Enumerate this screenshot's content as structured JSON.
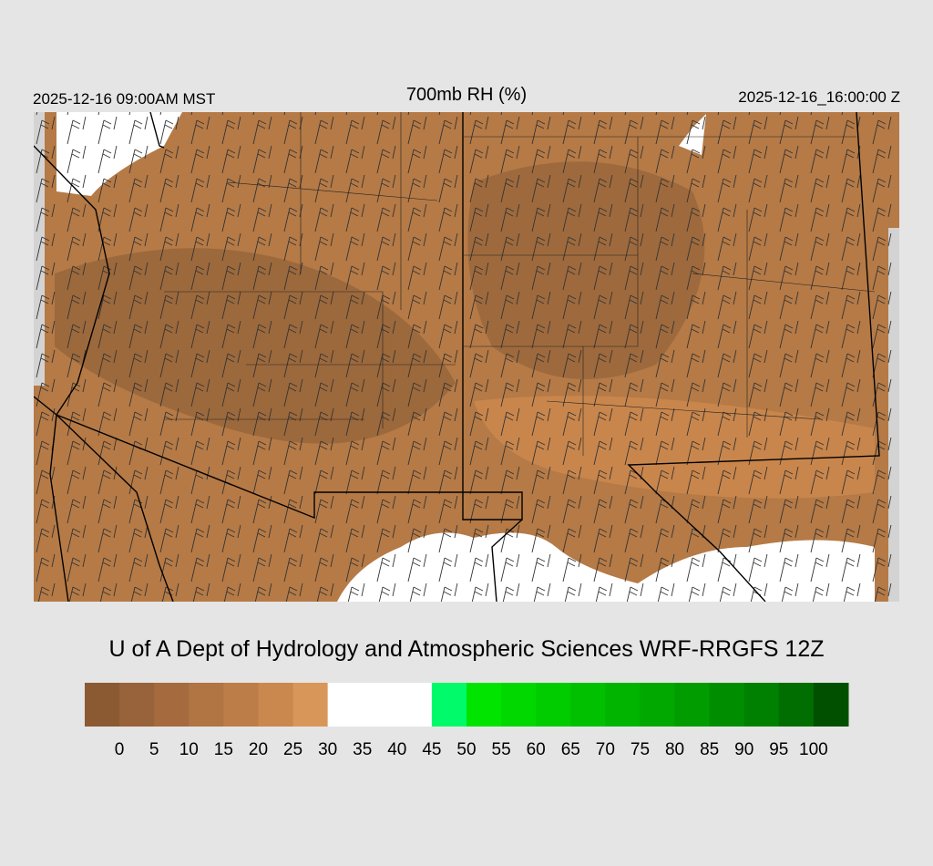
{
  "header": {
    "valid_local": "2025-12-16 09:00AM MST",
    "title": "700mb RH (%)",
    "valid_utc": "2025-12-16_16:00:00 Z"
  },
  "credit": "U of A Dept of Hydrology and Atmospheric Sciences WRF-RRGFS 12Z",
  "colorbar": {
    "colors": [
      "#8b5a33",
      "#98623a",
      "#a56b3e",
      "#b17443",
      "#bd7d48",
      "#ca874e",
      "#d89759",
      "#ffffff",
      "#ffffff",
      "#ffffff",
      "#00fa6a",
      "#00e400",
      "#00d800",
      "#00cc00",
      "#00c000",
      "#00b400",
      "#00a800",
      "#009c00",
      "#008e00",
      "#008000",
      "#006e00",
      "#005000"
    ],
    "ticks": [
      0,
      5,
      10,
      15,
      20,
      25,
      30,
      35,
      40,
      45,
      50,
      55,
      60,
      65,
      70,
      75,
      80,
      85,
      90,
      95,
      100
    ]
  }
}
